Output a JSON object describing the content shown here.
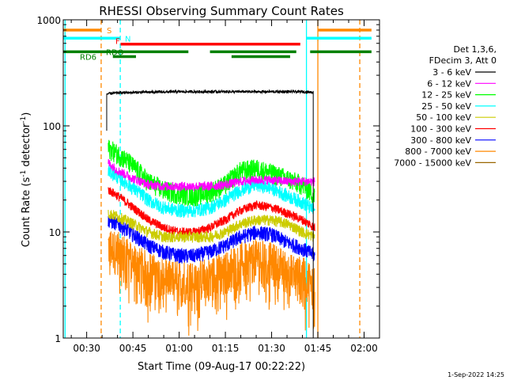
{
  "chart_data": {
    "type": "line",
    "title": "RHESSI Observing Summary Count Rates",
    "xlabel": "Start Time (09-Aug-17 00:22:22)",
    "ylabel_main": "Count Rate (s",
    "ylabel_sup1": "-1",
    "ylabel_mid": " detector",
    "ylabel_sup2": "-1",
    "ylabel_end": ")",
    "yscale": "log",
    "ylim": [
      1,
      1000
    ],
    "xlim_minutes": [
      22.4,
      125.0
    ],
    "xticks": [
      {
        "m": 30,
        "label": "00:30"
      },
      {
        "m": 45,
        "label": "00:45"
      },
      {
        "m": 60,
        "label": "01:00"
      },
      {
        "m": 75,
        "label": "01:15"
      },
      {
        "m": 90,
        "label": "01:30"
      },
      {
        "m": 105,
        "label": "01:45"
      },
      {
        "m": 120,
        "label": "02:00"
      }
    ],
    "yticks": [
      {
        "v": 1,
        "label": "1"
      },
      {
        "v": 10,
        "label": "10"
      },
      {
        "v": 100,
        "label": "100"
      },
      {
        "v": 1000,
        "label": "1000"
      }
    ],
    "legend": {
      "header1": "Det 1,3,6,",
      "header2": "FDecim 3, Att 0",
      "placement": "right"
    },
    "series": [
      {
        "name": "3 - 6 keV",
        "color": "#000000",
        "x": [
          36.5,
          40,
          50,
          60,
          70,
          80,
          90,
          100,
          103.5
        ],
        "y": [
          200,
          205,
          208,
          210,
          210,
          210,
          210,
          210,
          208
        ]
      },
      {
        "name": "6 - 12 keV",
        "color": "#ff00ff",
        "x": [
          37,
          40,
          45,
          50,
          55,
          60,
          65,
          70,
          75,
          80,
          85,
          90,
          95,
          100,
          104
        ],
        "y": [
          45,
          38,
          32,
          28,
          27,
          27,
          27,
          27,
          28,
          30,
          31,
          31,
          30,
          30,
          30
        ]
      },
      {
        "name": "12 - 25 keV",
        "color": "#00ff00",
        "x": [
          37,
          40,
          45,
          50,
          55,
          60,
          65,
          70,
          75,
          80,
          85,
          90,
          95,
          100,
          104
        ],
        "y": [
          62,
          55,
          42,
          30,
          25,
          23,
          22,
          24,
          28,
          38,
          40,
          36,
          32,
          28,
          22
        ]
      },
      {
        "name": "25 - 50 keV",
        "color": "#00ffff",
        "x": [
          37,
          40,
          45,
          50,
          55,
          60,
          65,
          70,
          75,
          80,
          85,
          90,
          95,
          100,
          104
        ],
        "y": [
          38,
          33,
          26,
          20,
          17,
          16,
          16,
          17,
          20,
          25,
          28,
          26,
          22,
          19,
          16
        ]
      },
      {
        "name": "50 - 100 keV",
        "color": "#cccc00",
        "x": [
          37,
          40,
          45,
          50,
          55,
          60,
          65,
          70,
          75,
          80,
          85,
          90,
          95,
          100,
          104
        ],
        "y": [
          15,
          14,
          12,
          10,
          9,
          9,
          9,
          9,
          10,
          12,
          13,
          13,
          12,
          10,
          9
        ]
      },
      {
        "name": "100 - 300 keV",
        "color": "#ff0000",
        "x": [
          37,
          40,
          45,
          50,
          55,
          60,
          65,
          70,
          75,
          80,
          85,
          90,
          95,
          100,
          104
        ],
        "y": [
          25,
          22,
          17,
          13,
          11,
          10,
          10,
          11,
          13,
          16,
          18,
          17,
          15,
          13,
          11
        ]
      },
      {
        "name": "300 - 800 keV",
        "color": "#0000ff",
        "x": [
          37,
          40,
          45,
          50,
          55,
          60,
          65,
          70,
          75,
          80,
          85,
          90,
          95,
          100,
          104
        ],
        "y": [
          13,
          12,
          9.5,
          7.5,
          6.5,
          6,
          6,
          6.5,
          7.5,
          9,
          10,
          9.5,
          8,
          7,
          6
        ]
      },
      {
        "name": "800 - 7000 keV",
        "color": "#ff8800",
        "x": [
          37,
          40,
          45,
          50,
          55,
          60,
          65,
          70,
          75,
          80,
          85,
          90,
          95,
          100,
          104
        ],
        "y": [
          7.5,
          7,
          5.5,
          4.5,
          4,
          3.7,
          3.7,
          4,
          4.5,
          5.5,
          6,
          5.5,
          4.5,
          4,
          3.5
        ]
      },
      {
        "name": "7000 - 15000 keV",
        "color": "#996600",
        "x": [],
        "y": []
      }
    ],
    "vertical_lines": [
      {
        "m": 23.0,
        "color": "#00ffff",
        "dashed": false
      },
      {
        "m": 34.7,
        "color": "#ff8800",
        "dashed": true
      },
      {
        "m": 40.9,
        "color": "#00ffff",
        "dashed": true
      },
      {
        "m": 101.3,
        "color": "#00ffff",
        "dashed": false
      },
      {
        "m": 105.0,
        "color": "#ff8800",
        "dashed": false
      },
      {
        "m": 118.6,
        "color": "#ff8800",
        "dashed": true
      }
    ],
    "status_bars": [
      {
        "label": "S",
        "color": "#ff8800",
        "segments": [
          [
            22.4,
            34.7
          ],
          [
            105.0,
            122.4
          ]
        ],
        "y": 800
      },
      {
        "label": "N",
        "color": "#00ffff",
        "segments": [
          [
            22.4,
            40.9
          ],
          [
            101.3,
            122.4
          ]
        ],
        "y": 670
      },
      {
        "label": "F",
        "color": "#ff0000",
        "segments": [
          [
            41.0,
            99.3
          ]
        ],
        "y": 590
      },
      {
        "label": "RDO",
        "color": "#008000",
        "segments": [
          [
            22.4,
            63.0
          ],
          [
            70.0,
            98.0
          ],
          [
            102.5,
            122.4
          ]
        ],
        "y": 500
      },
      {
        "label": "RD6",
        "color": "#008000",
        "segments": [
          [
            38.5,
            46.0
          ],
          [
            77.0,
            96.0
          ]
        ],
        "y": 450
      }
    ]
  },
  "timestamp": "1-Sep-2022 14:25"
}
